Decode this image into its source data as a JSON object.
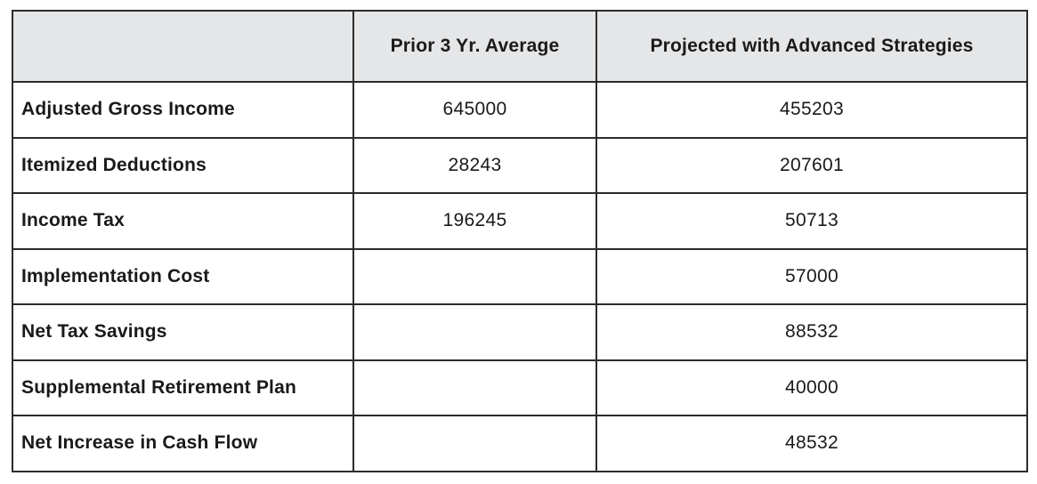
{
  "table": {
    "headers": [
      "",
      "Prior 3 Yr. Average",
      "Projected with Advanced Strategies"
    ],
    "rows": [
      {
        "label": "Adjusted Gross Income",
        "prior": "645000",
        "projected": "455203"
      },
      {
        "label": "Itemized Deductions",
        "prior": "28243",
        "projected": "207601"
      },
      {
        "label": "Income Tax",
        "prior": "196245",
        "projected": "50713"
      },
      {
        "label": "Implementation Cost",
        "prior": "",
        "projected": "57000"
      },
      {
        "label": "Net Tax Savings",
        "prior": "",
        "projected": "88532"
      },
      {
        "label": "Supplemental Retirement Plan",
        "prior": "",
        "projected": "40000"
      },
      {
        "label": "Net Increase in Cash Flow",
        "prior": "",
        "projected": "48532"
      }
    ]
  }
}
